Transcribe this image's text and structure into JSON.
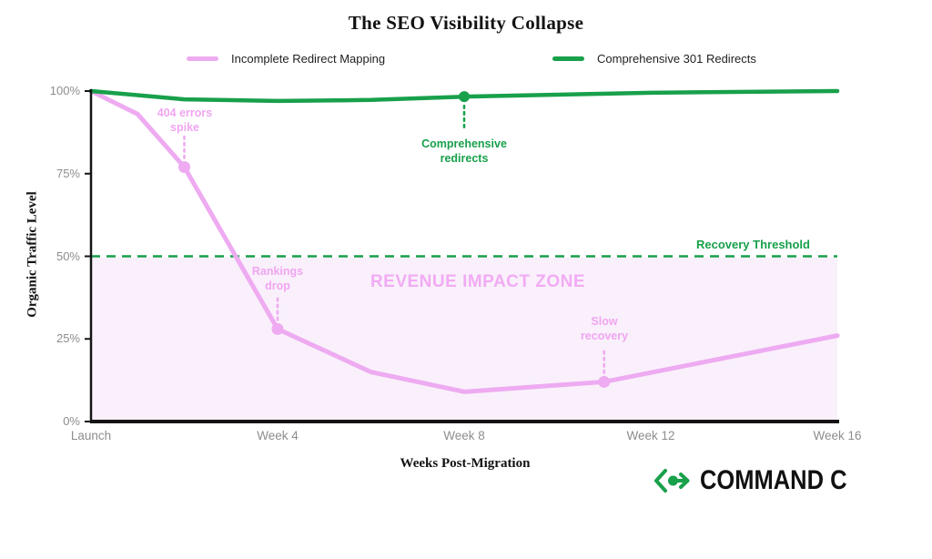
{
  "chart_data": {
    "type": "line",
    "title": "The SEO Visibility Collapse",
    "xlabel": "Weeks Post-Migration",
    "ylabel": "Organic Traffic Level",
    "xlim": [
      0,
      16
    ],
    "ylim": [
      0,
      100
    ],
    "grid": false,
    "legend_position": "top",
    "x_ticks": [
      {
        "week": 0,
        "label": "Launch"
      },
      {
        "week": 4,
        "label": "Week 4"
      },
      {
        "week": 8,
        "label": "Week 8"
      },
      {
        "week": 12,
        "label": "Week 12"
      },
      {
        "week": 16,
        "label": "Week 16"
      }
    ],
    "y_ticks": [
      {
        "value": 100,
        "label": "100%"
      },
      {
        "value": 75,
        "label": "75%"
      },
      {
        "value": 50,
        "label": "50%"
      },
      {
        "value": 25,
        "label": "25%"
      },
      {
        "value": 0,
        "label": "0%"
      }
    ],
    "series": [
      {
        "name": "Incomplete Redirect Mapping",
        "color": "#eeabf1",
        "width": 5,
        "points": [
          [
            0,
            100
          ],
          [
            1,
            93
          ],
          [
            2,
            77
          ],
          [
            4,
            28
          ],
          [
            6,
            15
          ],
          [
            8,
            9
          ],
          [
            11,
            12
          ],
          [
            16,
            26
          ]
        ]
      },
      {
        "name": "Comprehensive 301 Redirects",
        "color": "#18a04b",
        "width": 4.5,
        "points": [
          [
            0,
            100
          ],
          [
            2,
            97.5
          ],
          [
            4,
            97
          ],
          [
            6,
            97.3
          ],
          [
            8,
            98.3
          ],
          [
            12,
            99.5
          ],
          [
            16,
            100
          ]
        ]
      }
    ],
    "threshold": {
      "label": "Recovery Threshold",
      "value": 50
    },
    "zone": {
      "label": "REVENUE IMPACT ZONE",
      "below": 50,
      "fill": "#f9f0fb"
    },
    "annotations": [
      {
        "label": "404 errors spike",
        "lines": [
          "404 errors",
          "spike"
        ],
        "week": 2,
        "value": 77,
        "series": 0,
        "side": "above"
      },
      {
        "label": "Rankings drop",
        "lines": [
          "Rankings",
          "drop"
        ],
        "week": 4,
        "value": 28,
        "series": 0,
        "side": "above"
      },
      {
        "label": "Slow recovery",
        "lines": [
          "Slow",
          "recovery"
        ],
        "week": 11,
        "value": 12,
        "series": 0,
        "side": "above"
      },
      {
        "label": "Comprehensive redirects",
        "lines": [
          "Comprehensive",
          "redirects"
        ],
        "week": 8,
        "value": 98.3,
        "series": 1,
        "side": "below"
      }
    ]
  },
  "footer_logo": {
    "icon": "command-c-arrow-icon",
    "text": "COMMAND C",
    "accent": "#18a04b"
  },
  "colors": {
    "pink_line": "#eeabf1",
    "pink_text": "#f0a5f1",
    "green": "#18a04b",
    "zone_fill": "#f9f0fb",
    "axis": "#141414",
    "tick_text": "#8d8d8d"
  }
}
